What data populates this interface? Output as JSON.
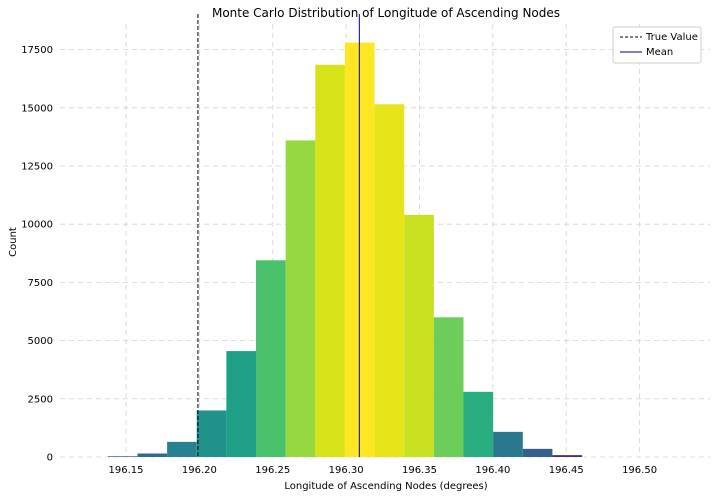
{
  "chart_data": {
    "type": "bar",
    "title": "Monte Carlo Distribution of Longitude of Ascending Nodes",
    "xlabel": "Longitude of Ascending Nodes (degrees)",
    "ylabel": "Count",
    "xlim": [
      196.105,
      196.548
    ],
    "ylim": [
      0,
      18600
    ],
    "xticks": [
      "196.15",
      "196.20",
      "196.25",
      "196.30",
      "196.35",
      "196.40",
      "196.45",
      "196.50"
    ],
    "yticks": [
      "0",
      "2500",
      "5000",
      "7500",
      "10000",
      "12500",
      "15000",
      "17500"
    ],
    "grid": true,
    "legend_position": "top-right",
    "bin_edges": [
      196.1376,
      196.1578,
      196.178,
      196.1982,
      196.2184,
      196.2386,
      196.2588,
      196.279,
      196.2992,
      196.3194,
      196.3396,
      196.3598,
      196.38,
      196.4002,
      196.4204,
      196.4406,
      196.4608
    ],
    "counts": [
      30,
      150,
      650,
      2000,
      4550,
      8450,
      13600,
      16850,
      17800,
      15150,
      10400,
      6000,
      2800,
      1080,
      350,
      80
    ],
    "bar_colors": [
      "#3b528b",
      "#31688e",
      "#26828e",
      "#21918c",
      "#1fa187",
      "#4ac16d",
      "#95d840",
      "#d8e219",
      "#fde725",
      "#e7e419",
      "#c8e020",
      "#6ccd5a",
      "#28ae80",
      "#2a788e",
      "#355f8d",
      "#472d7b"
    ],
    "lines": [
      {
        "name": "True Value",
        "x": 196.199,
        "style": "dashed",
        "color": "#000000"
      },
      {
        "name": "Mean",
        "x": 196.309,
        "style": "solid",
        "color": "#000080"
      }
    ]
  }
}
